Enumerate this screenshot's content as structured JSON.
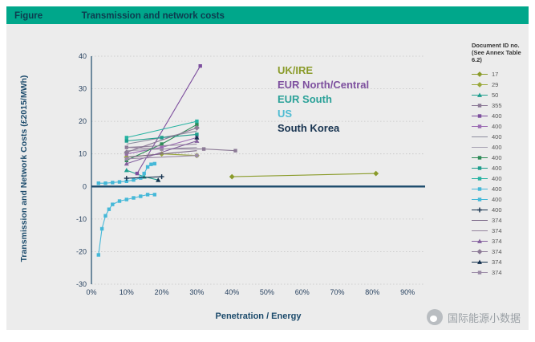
{
  "header": {
    "label": "Figure",
    "title": "Transmission and network costs"
  },
  "doc_legend": {
    "title_line1": "Document ID no.",
    "title_line2": "(See Annex Table 6.2)"
  },
  "region_legend": [
    {
      "label": "UK/IRE",
      "color": "#8a9b2a"
    },
    {
      "label": "EUR North/Central",
      "color": "#7d4f9e"
    },
    {
      "label": "EUR South",
      "color": "#2aa198"
    },
    {
      "label": "US",
      "color": "#4fbcd3"
    },
    {
      "label": "South Korea",
      "color": "#16324f"
    }
  ],
  "watermark": {
    "text": "国际能源小数据"
  },
  "chart_data": {
    "type": "line",
    "title": "Transmission and network costs",
    "xlabel": "Penetration / Energy",
    "ylabel": "Transmission and Network Costs (£2015/MWh)",
    "xlim": [
      0,
      95
    ],
    "ylim": [
      -30,
      40
    ],
    "x_tick_values": [
      0,
      10,
      20,
      30,
      40,
      50,
      60,
      70,
      80,
      90
    ],
    "x_ticks": [
      "0%",
      "10%",
      "20%",
      "30%",
      "40%",
      "50%",
      "60%",
      "70%",
      "80%",
      "90%"
    ],
    "y_ticks": [
      40,
      30,
      20,
      10,
      0,
      -10,
      -20,
      -30
    ],
    "grid": true,
    "legend_position": "right",
    "series": [
      {
        "id": "17",
        "region": "UK/IRE",
        "color": "#8a9b2a",
        "marker": "diamond",
        "points": [
          [
            40,
            3
          ],
          [
            81,
            4
          ]
        ]
      },
      {
        "id": "29",
        "region": "UK/IRE",
        "color": "#9aa83b",
        "marker": "diamond",
        "points": [
          [
            10,
            9
          ],
          [
            20,
            10
          ],
          [
            30,
            9.5
          ]
        ]
      },
      {
        "id": "50",
        "region": "EUR South",
        "color": "#1f9e8e",
        "marker": "triangle",
        "points": [
          [
            10,
            5
          ],
          [
            15,
            3
          ],
          [
            19,
            2
          ]
        ]
      },
      {
        "id": "355",
        "region": "EUR North/Central",
        "color": "#8c7a96",
        "marker": "square",
        "points": [
          [
            10,
            12
          ],
          [
            20,
            11.5
          ],
          [
            32,
            11.5
          ],
          [
            41,
            11
          ]
        ]
      },
      {
        "id": "400",
        "region": "EUR North/Central",
        "color": "#7d4f9e",
        "marker": "square",
        "points": [
          [
            13,
            4
          ],
          [
            31,
            37
          ]
        ]
      },
      {
        "id": "400",
        "region": "EUR North/Central",
        "color": "#9b6bb3",
        "marker": "square",
        "points": [
          [
            10,
            10
          ],
          [
            20,
            12
          ],
          [
            30,
            15
          ]
        ]
      },
      {
        "id": "400",
        "region": "EUR North/Central",
        "color": "#8d8d9e",
        "marker": "none",
        "points": [
          [
            10,
            13
          ],
          [
            20,
            15
          ],
          [
            30,
            17
          ]
        ]
      },
      {
        "id": "400",
        "region": "EUR North/Central",
        "color": "#a59fb0",
        "marker": "none",
        "points": [
          [
            10,
            11
          ],
          [
            30,
            12
          ]
        ]
      },
      {
        "id": "400",
        "region": "EUR South",
        "color": "#2e8b57",
        "marker": "square",
        "points": [
          [
            10,
            8
          ],
          [
            20,
            13
          ],
          [
            30,
            19
          ]
        ]
      },
      {
        "id": "400",
        "region": "EUR South",
        "color": "#1f9e8e",
        "marker": "square",
        "points": [
          [
            10,
            14
          ],
          [
            20,
            15
          ],
          [
            30,
            16
          ]
        ]
      },
      {
        "id": "400",
        "region": "EUR South",
        "color": "#27b3a2",
        "marker": "square",
        "points": [
          [
            10,
            15
          ],
          [
            30,
            20
          ]
        ]
      },
      {
        "id": "400",
        "region": "US",
        "color": "#45b8d8",
        "marker": "square",
        "points": [
          [
            2,
            -21
          ],
          [
            3,
            -13
          ],
          [
            4,
            -9
          ],
          [
            5,
            -7
          ],
          [
            6,
            -5.5
          ],
          [
            8,
            -4.5
          ],
          [
            10,
            -4
          ],
          [
            12,
            -3.5
          ],
          [
            14,
            -3
          ],
          [
            16,
            -2.5
          ],
          [
            18,
            -2.5
          ]
        ]
      },
      {
        "id": "400",
        "region": "US",
        "color": "#45b8d8",
        "marker": "square",
        "points": [
          [
            2,
            1
          ],
          [
            4,
            1
          ],
          [
            6,
            1.2
          ],
          [
            8,
            1.4
          ],
          [
            10,
            1.6
          ],
          [
            12,
            2
          ],
          [
            14,
            2.6
          ],
          [
            15,
            4
          ],
          [
            16,
            6
          ],
          [
            17,
            6.8
          ],
          [
            18,
            7
          ]
        ]
      },
      {
        "id": "400",
        "region": "South Korea",
        "color": "#16324f",
        "marker": "plus",
        "points": [
          [
            10,
            2.5
          ],
          [
            20,
            3
          ]
        ]
      },
      {
        "id": "374",
        "region": "EUR North/Central",
        "color": "#7b6888",
        "marker": "none",
        "points": [
          [
            10,
            9
          ],
          [
            30,
            11
          ]
        ]
      },
      {
        "id": "374",
        "region": "EUR North/Central",
        "color": "#94849e",
        "marker": "none",
        "points": [
          [
            10,
            12
          ],
          [
            20,
            12.5
          ],
          [
            30,
            13
          ]
        ]
      },
      {
        "id": "374",
        "region": "EUR North/Central",
        "color": "#84609e",
        "marker": "triangle",
        "points": [
          [
            10,
            7
          ],
          [
            30,
            14
          ]
        ]
      },
      {
        "id": "374",
        "region": "EUR North/Central",
        "color": "#8c7a96",
        "marker": "diamond",
        "points": [
          [
            10,
            10.5
          ],
          [
            30,
            18
          ]
        ]
      },
      {
        "id": "374",
        "region": "South Korea",
        "color": "#16324f",
        "marker": "triangle",
        "line": false,
        "points": [
          [
            19,
            2
          ],
          [
            30,
            15
          ]
        ]
      },
      {
        "id": "374",
        "region": "EUR North/Central",
        "color": "#9a8aa6",
        "marker": "square",
        "points": [
          [
            10,
            8.5
          ],
          [
            30,
            9.5
          ]
        ]
      }
    ]
  }
}
